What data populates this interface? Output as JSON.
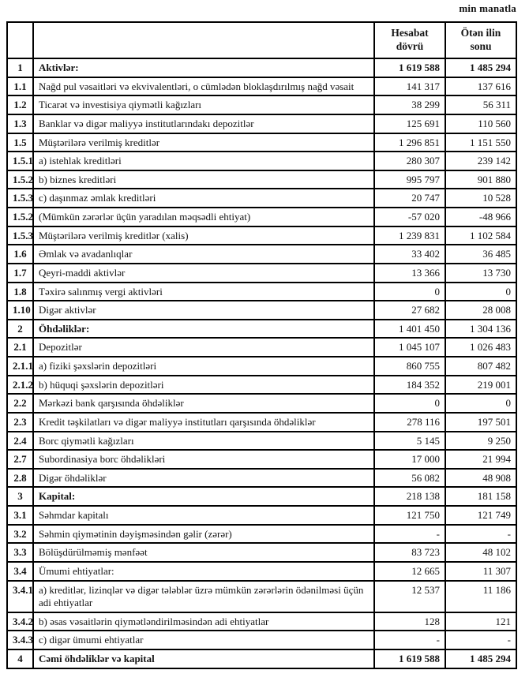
{
  "page": {
    "unit_label": "min manatla"
  },
  "table": {
    "header": {
      "col_report_period": "Hesabat dövrü",
      "col_prev_year_end": "Ötən ilin sonu"
    },
    "rows": [
      {
        "no": "1",
        "label": "Aktivlər:",
        "current": "1 619 588",
        "previous": "1 485 294",
        "section": true,
        "bold_values": true
      },
      {
        "no": "1.1",
        "label": "Nağd pul vəsaitləri və  ekvivalentləri, o cümlədən bloklaşdırılmış nağd vəsait",
        "current": "141 317",
        "previous": "137 616"
      },
      {
        "no": "1.2",
        "label": "Ticarət və investisiya qiymətli kağızları",
        "current": "38 299",
        "previous": "56 311"
      },
      {
        "no": "1.3",
        "label": "Banklar və digər maliyyə institutlarındakı depozitlər",
        "current": "125 691",
        "previous": "110 560"
      },
      {
        "no": "1.5",
        "label": "Müştərilərə verilmiş kreditlər",
        "current": "1 296 851",
        "previous": "1 151 550"
      },
      {
        "no": "1.5.1",
        "label": "a) istehlak kreditləri",
        "current": "280 307",
        "previous": "239 142"
      },
      {
        "no": "1.5.2",
        "label": "b) biznes kreditləri",
        "current": "995 797",
        "previous": "901 880"
      },
      {
        "no": "1.5.3",
        "label": "c) daşınmaz əmlak kreditləri",
        "current": "20 747",
        "previous": "10 528"
      },
      {
        "no": "1.5.2",
        "label": "(Mümkün zərərlər üçün yaradılan məqsədli ehtiyat)",
        "current": "-57 020",
        "previous": "-48 966"
      },
      {
        "no": "1.5.3",
        "label": "Müştərilərə verilmiş kreditlər (xalis)",
        "current": "1 239 831",
        "previous": "1 102 584"
      },
      {
        "no": "1.6",
        "label": "Əmlak və avadanlıqlar",
        "current": "33 402",
        "previous": "36 485"
      },
      {
        "no": "1.7",
        "label": "Qeyri-maddi aktivlər",
        "current": "13 366",
        "previous": "13 730"
      },
      {
        "no": "1.8",
        "label": "Təxirə salınmış vergi aktivləri",
        "current": "0",
        "previous": "0"
      },
      {
        "no": "1.10",
        "label": "Digər aktivlər",
        "current": "27 682",
        "previous": "28 008"
      },
      {
        "no": "2",
        "label": "Öhdəliklər:",
        "current": "1 401 450",
        "previous": "1 304 136",
        "section": true
      },
      {
        "no": "2.1",
        "label": "Depozitlər",
        "current": "1 045 107",
        "previous": "1 026 483"
      },
      {
        "no": "2.1.1",
        "label": "a) fiziki şəxslərin depozitləri",
        "current": "860 755",
        "previous": "807 482"
      },
      {
        "no": "2.1.2",
        "label": "b) hüquqi şəxslərin depozitləri",
        "current": "184 352",
        "previous": "219 001"
      },
      {
        "no": "2.2",
        "label": "Mərkəzi bank qarşısında öhdəliklər",
        "current": "0",
        "previous": "0"
      },
      {
        "no": "2.3",
        "label": "Kredit təşkilatları və digər maliyyə institutları qarşısında öhdəliklər",
        "current": "278 116",
        "previous": "197 501"
      },
      {
        "no": "2.4",
        "label": "Borc qiymətli kağızları",
        "current": "5 145",
        "previous": "9 250"
      },
      {
        "no": "2.7",
        "label": "Subordinasiya borc öhdəlikləri",
        "current": "17 000",
        "previous": "21 994"
      },
      {
        "no": "2.8",
        "label": "Digər öhdəliklər",
        "current": "56 082",
        "previous": "48 908"
      },
      {
        "no": "3",
        "label": "Kapital:",
        "current": "218 138",
        "previous": "181 158",
        "section": true
      },
      {
        "no": "3.1",
        "label": "Səhmdar kapitalı",
        "current": "121 750",
        "previous": "121 749"
      },
      {
        "no": "3.2",
        "label": "Səhmin qiymətinin dəyişməsindən gəlir (zərər)",
        "current": "-",
        "previous": "-"
      },
      {
        "no": "3.3",
        "label": "Bölüşdürülməmiş mənfəət",
        "current": "83 723",
        "previous": "48 102"
      },
      {
        "no": "3.4",
        "label": "Ümumi ehtiyatlar:",
        "current": "12 665",
        "previous": "11 307"
      },
      {
        "no": "3.4.1",
        "label": "a) kreditlər, lizinqlər və digər tələblər üzrə mümkün zərərlərin ödənilməsi üçün adi ehtiyatlar",
        "current": "12 537",
        "previous": "11 186"
      },
      {
        "no": "3.4.2",
        "label": "b) əsas vəsaitlərin qiymətləndirilməsindən adi ehtiyatlar",
        "current": "128",
        "previous": "121"
      },
      {
        "no": "3.4.3",
        "label": "c) digər ümumi ehtiyatlar",
        "current": "-",
        "previous": "-"
      },
      {
        "no": "4",
        "label": "Cəmi öhdəliklər və kapital",
        "current": "1 619 588",
        "previous": "1 485 294",
        "section": true,
        "bold_values": true
      }
    ]
  }
}
